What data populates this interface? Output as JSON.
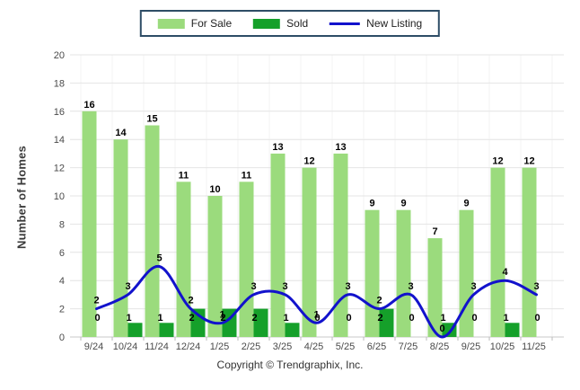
{
  "legend": {
    "items": [
      {
        "label": "For Sale",
        "swatch": "box",
        "color": "#9bdb7d"
      },
      {
        "label": "Sold",
        "swatch": "box",
        "color": "#15a02a"
      },
      {
        "label": "New Listing",
        "swatch": "line",
        "color": "#1212cc"
      }
    ]
  },
  "chart_data": {
    "type": "bar",
    "categories": [
      "9/24",
      "10/24",
      "11/24",
      "12/24",
      "1/25",
      "2/25",
      "3/25",
      "4/25",
      "5/25",
      "6/25",
      "7/25",
      "8/25",
      "9/25",
      "10/25",
      "11/25"
    ],
    "series": [
      {
        "name": "For Sale",
        "type": "bar",
        "color": "#9bdb7d",
        "values": [
          16,
          14,
          15,
          11,
          10,
          11,
          13,
          12,
          13,
          9,
          9,
          7,
          9,
          12,
          12
        ]
      },
      {
        "name": "Sold",
        "type": "bar",
        "color": "#15a02a",
        "values": [
          0,
          1,
          1,
          2,
          2,
          2,
          1,
          0,
          0,
          2,
          0,
          1,
          0,
          1,
          0
        ]
      },
      {
        "name": "New Listing",
        "type": "line",
        "color": "#1212cc",
        "values": [
          2,
          3,
          5,
          2,
          1,
          3,
          3,
          1,
          3,
          2,
          3,
          0,
          3,
          4,
          3
        ]
      }
    ],
    "title": "",
    "xlabel": "",
    "ylabel": "Number of Homes",
    "ylim": [
      0,
      20
    ],
    "ytick_step": 2,
    "grid": true,
    "legend_position": "top-center"
  },
  "footer": {
    "copyright": "Copyright © Trendgraphix, Inc."
  }
}
